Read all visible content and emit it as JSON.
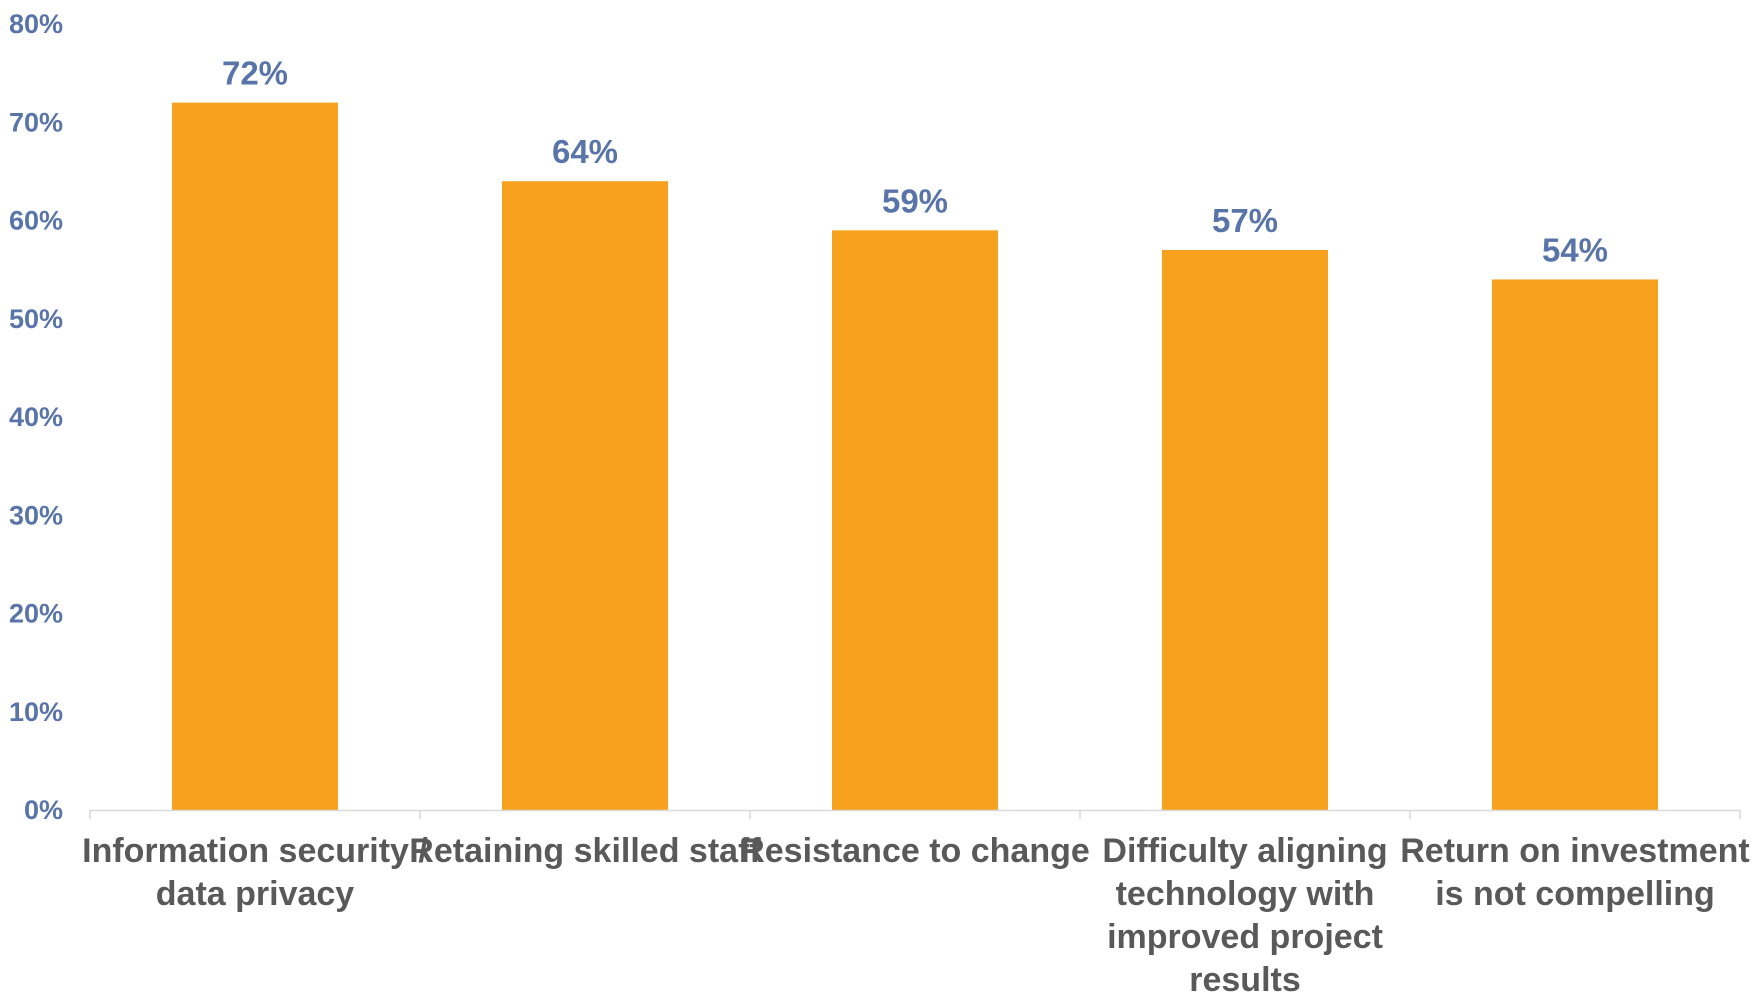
{
  "chart_data": {
    "type": "bar",
    "categories": [
      [
        "Information security /",
        "data privacy"
      ],
      [
        "Retaining skilled staff"
      ],
      [
        "Resistance to change"
      ],
      [
        "Difficulty aligning",
        "technology with",
        "improved project",
        "results"
      ],
      [
        "Return on investment",
        "is not compelling"
      ]
    ],
    "values": [
      72,
      64,
      59,
      57,
      54
    ],
    "value_labels": [
      "72%",
      "64%",
      "59%",
      "57%",
      "54%"
    ],
    "y_ticks": [
      0,
      10,
      20,
      30,
      40,
      50,
      60,
      70,
      80
    ],
    "y_tick_labels": [
      "0%",
      "10%",
      "20%",
      "30%",
      "40%",
      "50%",
      "60%",
      "70%",
      "80%"
    ],
    "ylim": [
      0,
      80
    ],
    "grid": false,
    "legend": "none",
    "colors": {
      "bar": "#f7a11e",
      "value_label": "#5874a9",
      "tick_label": "#5874a9",
      "category_label": "#595959",
      "axis": "#d9d9d9"
    }
  }
}
